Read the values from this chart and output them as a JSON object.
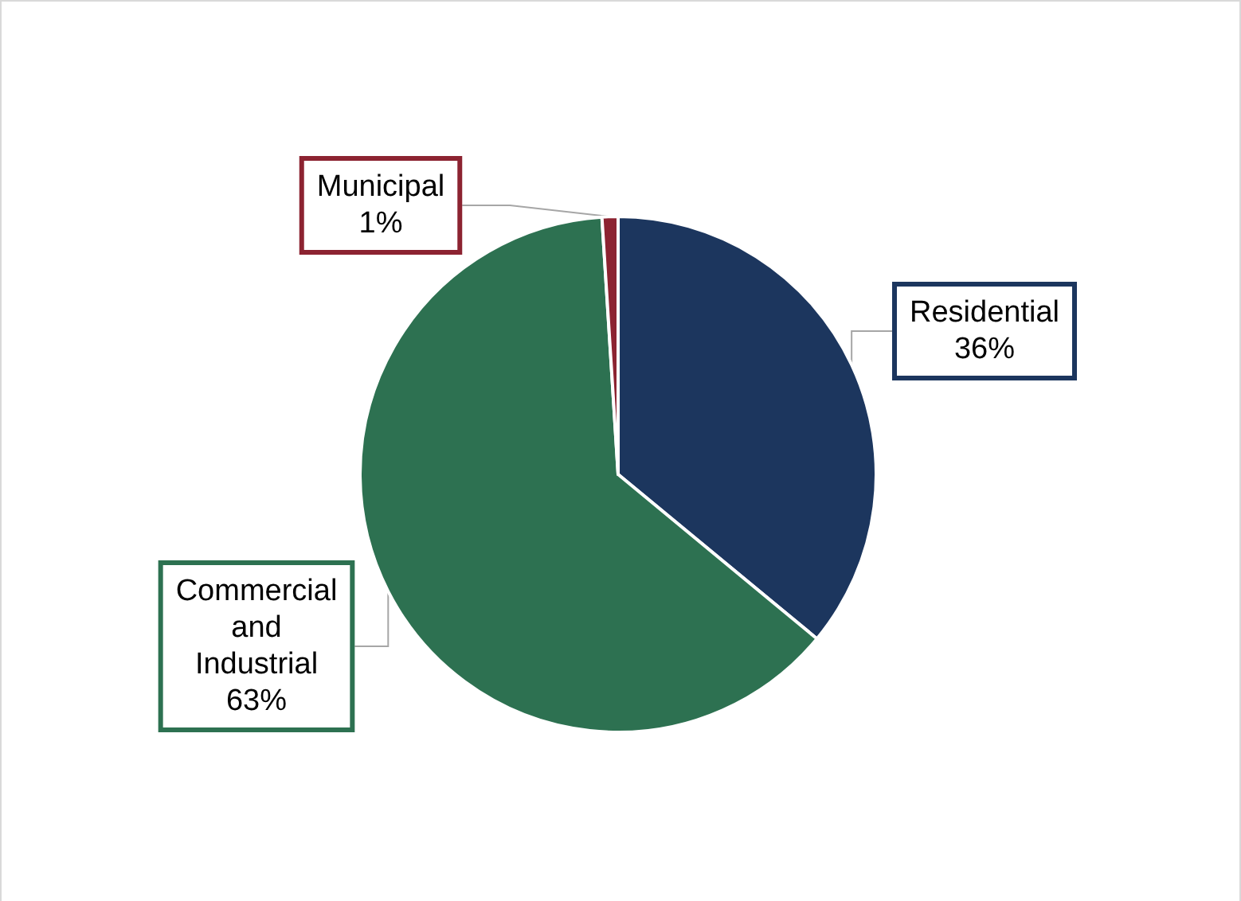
{
  "chart_data": {
    "type": "pie",
    "categories": [
      "Residential",
      "Commercial and Industrial",
      "Municipal"
    ],
    "values": [
      36,
      63,
      1
    ],
    "colors": [
      "#1c365e",
      "#2d7151",
      "#8c2331"
    ],
    "value_labels": [
      "36%",
      "63%",
      "1%"
    ]
  }
}
